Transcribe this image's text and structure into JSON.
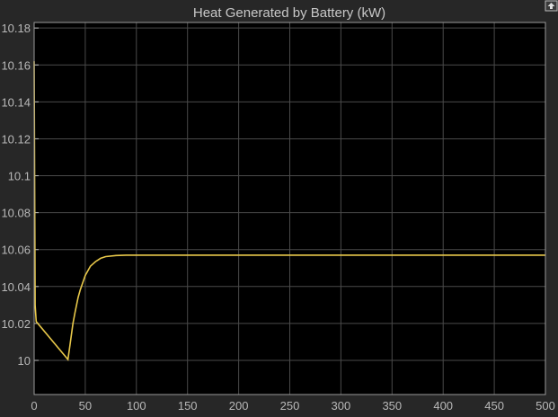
{
  "chart_data": {
    "type": "line",
    "title": "Heat Generated by Battery (kW)",
    "xlabel": "",
    "ylabel": "",
    "xlim": [
      0,
      500
    ],
    "ylim": [
      9.9815,
      10.183
    ],
    "xticks": [
      0,
      50,
      100,
      150,
      200,
      250,
      300,
      350,
      400,
      450,
      500
    ],
    "yticks": [
      10,
      10.02,
      10.04,
      10.06,
      10.08,
      10.1,
      10.12,
      10.14,
      10.16,
      10.18
    ],
    "ytick_labels": [
      "10",
      "10.02",
      "10.04",
      "10.06",
      "10.08",
      "10.1",
      "10.12",
      "10.14",
      "10.16",
      "10.18"
    ],
    "grid": true,
    "series": [
      {
        "color": "#e8c84a",
        "x": [
          0,
          0.5,
          1,
          2,
          33,
          35,
          38,
          40,
          43,
          45,
          50,
          55,
          60,
          65,
          70,
          80,
          90,
          100,
          500
        ],
        "y": [
          10.162,
          10.09,
          10.03,
          10.021,
          10.0005,
          10.008,
          10.02,
          10.026,
          10.034,
          10.038,
          10.046,
          10.051,
          10.0535,
          10.0553,
          10.0562,
          10.0568,
          10.057,
          10.057,
          10.057
        ]
      }
    ]
  },
  "colors": {
    "background": "#272727",
    "plot_bg": "#000000",
    "grid": "#4a4a4a",
    "axis": "#bfbfbf"
  },
  "toolbar": {
    "icon": "restore-axes-icon"
  }
}
